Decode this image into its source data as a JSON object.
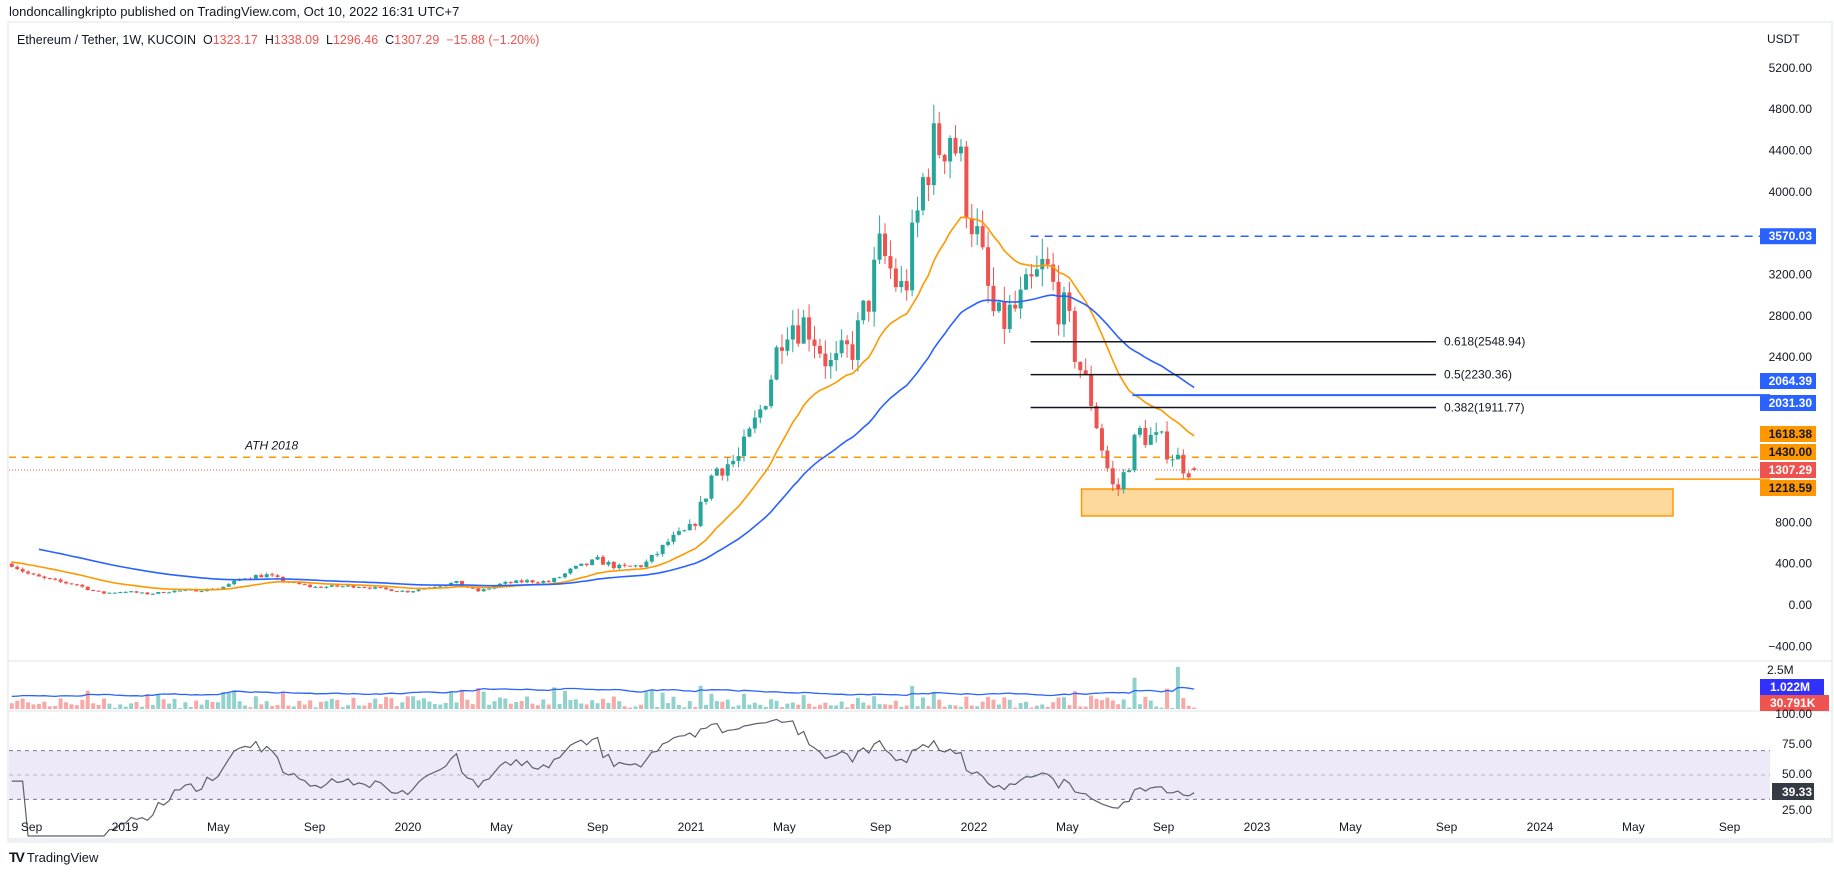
{
  "header": {
    "published": "londoncallingkripto published on TradingView.com, Oct 10, 2022 16:31 UTC+7"
  },
  "legend": {
    "symbol": "Ethereum / Tether, 1W, KUCOIN",
    "o_label": "O",
    "open": "1323.17",
    "h_label": "H",
    "high": "1338.09",
    "l_label": "L",
    "low": "1296.46",
    "c_label": "C",
    "close": "1307.29",
    "change": "−15.88 (−1.20%)"
  },
  "colors": {
    "up": "#26a69a",
    "down": "#ef5350",
    "ma_fast": "#ff9800",
    "ma_slow": "#2962ff",
    "fib": "#131722",
    "rsi": "#5d606b",
    "rsi_band": "#ede9f8"
  },
  "price_axis": {
    "currency": "USDT",
    "ticks": [
      "5200.00",
      "4800.00",
      "4400.00",
      "4000.00",
      "3200.00",
      "2800.00",
      "2400.00",
      "800.00",
      "400.00",
      "0.00",
      "−400.00"
    ],
    "tick_values": [
      5200,
      4800,
      4400,
      4000,
      3200,
      2800,
      2400,
      800,
      400,
      0,
      -400
    ]
  },
  "price_labels": [
    {
      "text": "3570.03",
      "value": 3570.03,
      "color": "#2962ff"
    },
    {
      "text": "2064.39",
      "value": 2064.39,
      "color": "#2962ff"
    },
    {
      "text": "2031.30",
      "value": 2031.3,
      "color": "#2962ff"
    },
    {
      "text": "1618.38",
      "value": 1618.38,
      "color": "#ff9800"
    },
    {
      "text": "1430.00",
      "value": 1430.0,
      "color": "#ff9800"
    },
    {
      "text": "1307.29",
      "value": 1307.29,
      "color": "#ef5350"
    },
    {
      "text": "1218.59",
      "value": 1218.59,
      "color": "#ff9800"
    }
  ],
  "annotations": {
    "ath_label": "ATH 2018",
    "ath_level": 1430,
    "resistance_dashed": 3570.03,
    "resistance_solid": 2031.3,
    "support_line": 1218.59,
    "current_price": 1307.29,
    "fib": [
      {
        "text": "0.618(2548.94)",
        "value": 2548.94
      },
      {
        "text": "0.5(2230.36)",
        "value": 2230.36
      },
      {
        "text": "0.382(1911.77)",
        "value": 1911.77
      }
    ],
    "demand_zone": {
      "top": 1123,
      "bottom": 862,
      "from": "2022-05",
      "to": "2024-06"
    }
  },
  "volume_axis": {
    "tick": "2.5M",
    "ma_label": "1.022M",
    "vol_label": "30.791K"
  },
  "rsi_axis": {
    "ticks": [
      "100.00",
      "75.00",
      "50.00",
      "25.00"
    ],
    "tick_values": [
      100,
      75,
      50,
      25
    ],
    "current": "39.33",
    "upper": 70,
    "middle": 50,
    "lower": 30
  },
  "time_axis": [
    {
      "label": "Sep",
      "t": 2018.67
    },
    {
      "label": "2019",
      "t": 2019.0
    },
    {
      "label": "May",
      "t": 2019.33
    },
    {
      "label": "Sep",
      "t": 2019.67
    },
    {
      "label": "2020",
      "t": 2020.0
    },
    {
      "label": "May",
      "t": 2020.33
    },
    {
      "label": "Sep",
      "t": 2020.67
    },
    {
      "label": "2021",
      "t": 2021.0
    },
    {
      "label": "May",
      "t": 2021.33
    },
    {
      "label": "Sep",
      "t": 2021.67
    },
    {
      "label": "2022",
      "t": 2022.0
    },
    {
      "label": "May",
      "t": 2022.33
    },
    {
      "label": "Sep",
      "t": 2022.67
    },
    {
      "label": "2023",
      "t": 2023.0
    },
    {
      "label": "May",
      "t": 2023.33
    },
    {
      "label": "Sep",
      "t": 2023.67
    },
    {
      "label": "2024",
      "t": 2024.0
    },
    {
      "label": "May",
      "t": 2024.33
    },
    {
      "label": "Sep",
      "t": 2024.67
    }
  ],
  "footer": {
    "brand": "TradingView"
  },
  "chart_data": {
    "type": "candlestick",
    "title": "Ethereum / Tether, 1W, KUCOIN",
    "ylabel": "USDT",
    "ylim": [
      -400,
      5200
    ],
    "interval": "1W",
    "start": 2018.6,
    "end": 2022.775,
    "monthly_close_anchors": [
      [
        2018.6,
        400
      ],
      [
        2018.67,
        285
      ],
      [
        2018.75,
        232
      ],
      [
        2018.83,
        198
      ],
      [
        2018.92,
        113
      ],
      [
        2019.0,
        133
      ],
      [
        2019.08,
        107
      ],
      [
        2019.17,
        136
      ],
      [
        2019.25,
        141
      ],
      [
        2019.33,
        160
      ],
      [
        2019.42,
        268
      ],
      [
        2019.5,
        290
      ],
      [
        2019.58,
        218
      ],
      [
        2019.67,
        172
      ],
      [
        2019.75,
        180
      ],
      [
        2019.83,
        182
      ],
      [
        2019.92,
        151
      ],
      [
        2020.0,
        130
      ],
      [
        2020.08,
        179
      ],
      [
        2020.17,
        217
      ],
      [
        2020.25,
        133
      ],
      [
        2020.33,
        206
      ],
      [
        2020.42,
        231
      ],
      [
        2020.5,
        225
      ],
      [
        2020.58,
        345
      ],
      [
        2020.67,
        434
      ],
      [
        2020.75,
        359
      ],
      [
        2020.83,
        386
      ],
      [
        2020.92,
        615
      ],
      [
        2021.0,
        737
      ],
      [
        2021.08,
        1312
      ],
      [
        2021.17,
        1418
      ],
      [
        2021.25,
        1918
      ],
      [
        2021.33,
        2772
      ],
      [
        2021.42,
        2706
      ],
      [
        2021.5,
        2275
      ],
      [
        2021.58,
        2536
      ],
      [
        2021.67,
        3433
      ],
      [
        2021.75,
        3000
      ],
      [
        2021.83,
        4288
      ],
      [
        2021.92,
        4630
      ],
      [
        2022.0,
        3683
      ],
      [
        2022.08,
        2688
      ],
      [
        2022.17,
        2919
      ],
      [
        2022.25,
        3282
      ],
      [
        2022.33,
        2727
      ],
      [
        2022.42,
        1942
      ],
      [
        2022.5,
        1067
      ],
      [
        2022.58,
        1678
      ],
      [
        2022.67,
        1553
      ],
      [
        2022.75,
        1328
      ],
      [
        2022.775,
        1307.29
      ]
    ],
    "last_candle": {
      "open": 1323.17,
      "high": 1338.09,
      "low": 1296.46,
      "close": 1307.29
    },
    "indicators": [
      {
        "name": "MA fast",
        "length": 20,
        "last": 1618.38
      },
      {
        "name": "MA slow",
        "length": 50,
        "last": 2064.39
      },
      {
        "name": "Volume",
        "last": "30.791K",
        "ma_last": "1.022M"
      },
      {
        "name": "RSI",
        "length": 14,
        "last": 39.33
      }
    ]
  }
}
